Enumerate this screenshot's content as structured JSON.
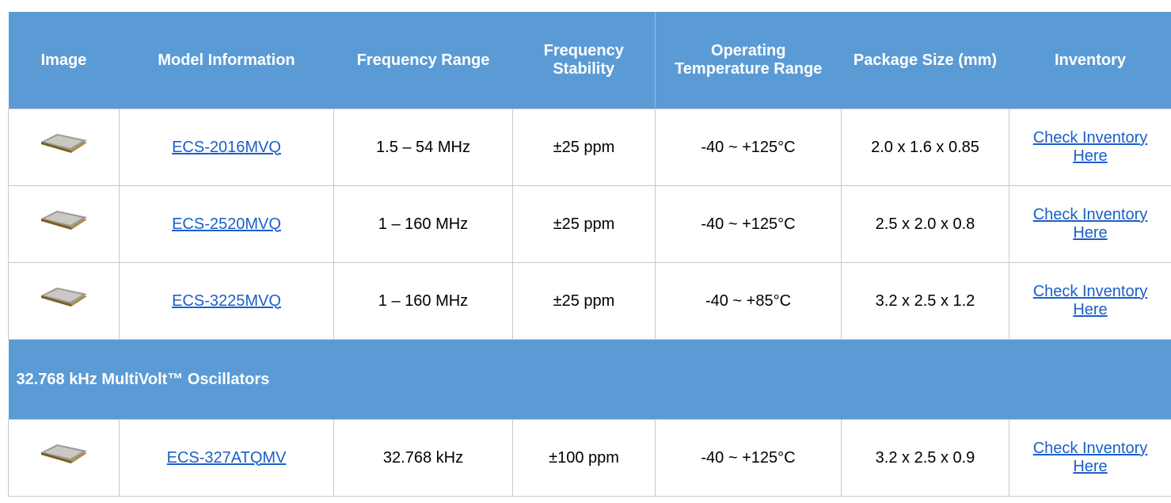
{
  "table": {
    "columns": [
      "Image",
      "Model Information",
      "Frequency Range",
      "Frequency Stability",
      "Operating Temperature Range",
      "Package Size (mm)",
      "Inventory"
    ],
    "groups": [
      {
        "rows": [
          [
            "ECS-2016MVQ",
            "1.5 – 54 MHz",
            "±25 ppm",
            "-40 ~ +125°C",
            "2.0 x 1.6 x 0.85",
            "Check Inventory Here"
          ],
          [
            "ECS-2520MVQ",
            "1 – 160 MHz",
            "±25 ppm",
            "-40 ~ +125°C",
            "2.5 x 2.0 x 0.8",
            "Check Inventory Here"
          ],
          [
            "ECS-3225MVQ",
            "1 – 160 MHz",
            "±25 ppm",
            "-40 ~ +85°C",
            "3.2 x 2.5 x 1.2",
            "Check Inventory Here"
          ]
        ]
      },
      {
        "title": "32.768 kHz MultiVolt™ Oscillators",
        "rows": [
          [
            "ECS-327ATQMV",
            "32.768 kHz",
            "±100 ppm",
            "-40 ~ +125°C",
            "3.2 x 2.5 x 0.9",
            "Check Inventory Here"
          ]
        ]
      }
    ]
  }
}
